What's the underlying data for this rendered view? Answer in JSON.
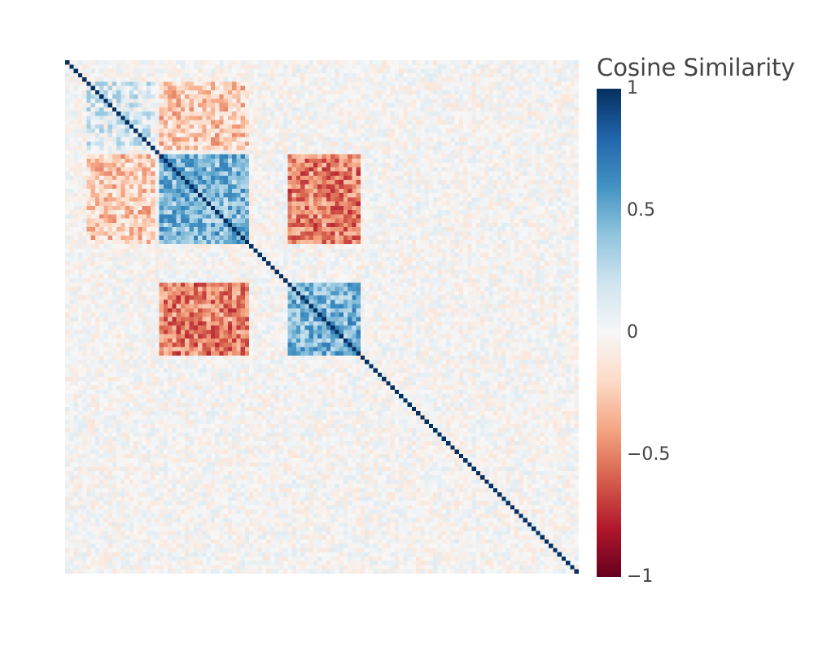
{
  "chart_data": {
    "type": "heatmap",
    "title": "",
    "xlabel": "",
    "ylabel": "",
    "matrix_size": 120,
    "zlim": [
      -1,
      1
    ],
    "colorscale": "RdBu",
    "colorscale_stops": [
      "#67001f",
      "#b2182b",
      "#d6604d",
      "#f4a582",
      "#fddbc7",
      "#f7f7f7",
      "#d1e5f0",
      "#92c5de",
      "#4393c3",
      "#2166ac",
      "#053061"
    ],
    "diagonal_value": 1,
    "blocks": [
      {
        "rows": [
          22,
          42
        ],
        "cols": [
          22,
          42
        ],
        "value": 0.45
      },
      {
        "rows": [
          52,
          68
        ],
        "cols": [
          52,
          68
        ],
        "value": 0.45
      },
      {
        "rows": [
          22,
          42
        ],
        "cols": [
          52,
          68
        ],
        "value": -0.5
      },
      {
        "rows": [
          52,
          68
        ],
        "cols": [
          22,
          42
        ],
        "value": -0.5
      },
      {
        "rows": [
          5,
          20
        ],
        "cols": [
          5,
          20
        ],
        "value": 0.15
      },
      {
        "rows": [
          5,
          20
        ],
        "cols": [
          22,
          42
        ],
        "value": -0.25
      },
      {
        "rows": [
          22,
          42
        ],
        "cols": [
          5,
          20
        ],
        "value": -0.25
      }
    ],
    "colorbar": {
      "title": "Cosine Similarity",
      "ticks": [
        {
          "value": 1,
          "label": "1"
        },
        {
          "value": 0.5,
          "label": "0.5"
        },
        {
          "value": 0,
          "label": "0"
        },
        {
          "value": -0.5,
          "label": "−0.5"
        },
        {
          "value": -1,
          "label": "−1"
        }
      ]
    }
  }
}
